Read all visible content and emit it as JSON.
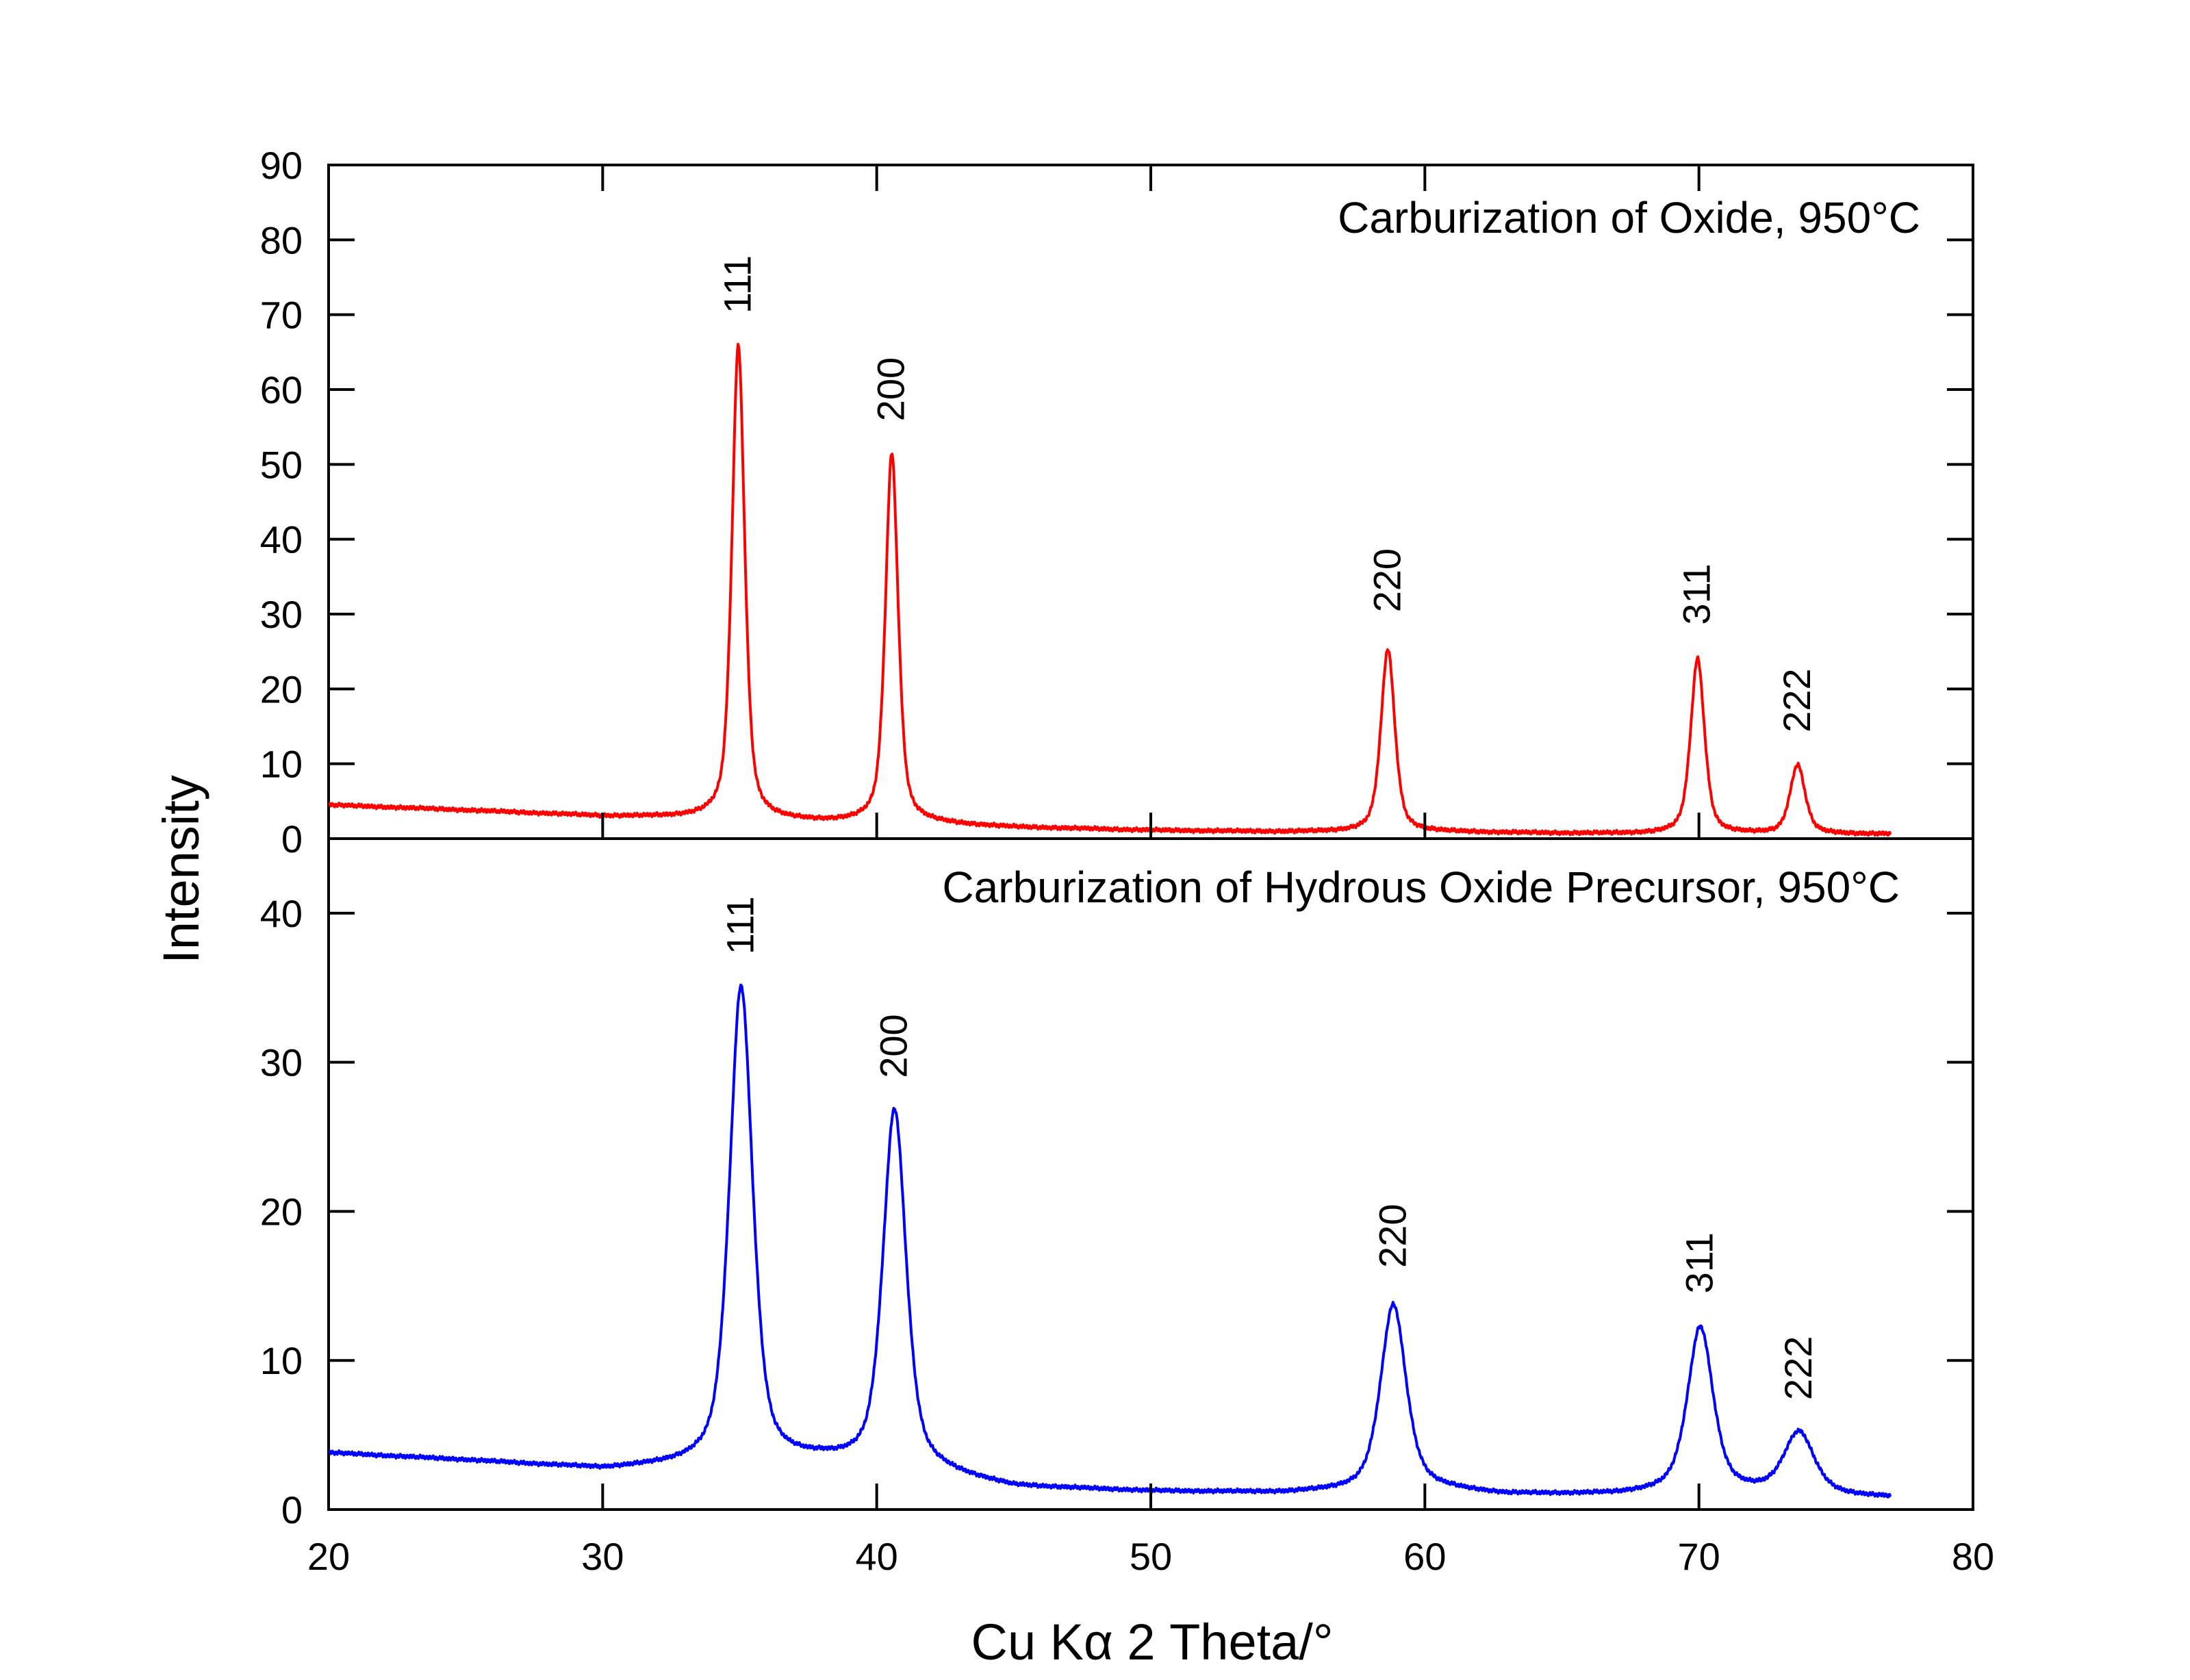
{
  "chart_data": {
    "type": "line",
    "xlabel": "Cu Kα 2 Theta/°",
    "ylabel": "Intensity",
    "xlim": [
      20,
      80
    ],
    "x_ticks": [
      20,
      30,
      40,
      50,
      60,
      70,
      80
    ],
    "colors": {
      "top": "#ff0000",
      "bottom": "#0000ff",
      "axes": "#000000"
    },
    "panels": [
      {
        "id": "top",
        "title": "Carburization of Oxide, 950°C",
        "ylim": [
          0,
          90
        ],
        "y_ticks": [
          0,
          10,
          20,
          30,
          40,
          50,
          60,
          70,
          80,
          90
        ],
        "series": {
          "name": "Carburization of Oxide, 950°C",
          "x_range": [
            20,
            77
          ],
          "background": [
            [
              20,
              4.5
            ],
            [
              25,
              3.8
            ],
            [
              30,
              3.0
            ],
            [
              33,
              2.8
            ],
            [
              38,
              2.2
            ],
            [
              42,
              2.0
            ],
            [
              45,
              1.5
            ],
            [
              50,
              1.1
            ],
            [
              55,
              0.9
            ],
            [
              60,
              0.9
            ],
            [
              65,
              0.7
            ],
            [
              70,
              0.6
            ],
            [
              77,
              0.6
            ]
          ],
          "peaks": [
            {
              "label": "111",
              "x": 34.95,
              "height": 63.2,
              "fwhm": 0.55
            },
            {
              "label": "200",
              "x": 40.55,
              "height": 49.3,
              "fwhm": 0.55
            },
            {
              "label": "220",
              "x": 58.65,
              "height": 24.4,
              "fwhm": 0.6
            },
            {
              "label": "311",
              "x": 69.95,
              "height": 23.4,
              "fwhm": 0.6
            },
            {
              "label": "222",
              "x": 73.6,
              "height": 9.2,
              "fwhm": 0.65
            }
          ]
        }
      },
      {
        "id": "bottom",
        "title": "Carburization of Hydrous Oxide Precursor, 950°C",
        "ylim": [
          0,
          45
        ],
        "y_ticks": [
          0,
          10,
          20,
          30,
          40
        ],
        "series": {
          "name": "Carburization of Hydrous Oxide Precursor, 950°C",
          "x_range": [
            20,
            77
          ],
          "background": [
            [
              20,
              3.8
            ],
            [
              25,
              3.3
            ],
            [
              30,
              2.7
            ],
            [
              33,
              2.9
            ],
            [
              38,
              3.2
            ],
            [
              42,
              2.5
            ],
            [
              45,
              1.5
            ],
            [
              50,
              1.2
            ],
            [
              55,
              1.1
            ],
            [
              60,
              1.4
            ],
            [
              63,
              1.0
            ],
            [
              67,
              1.0
            ],
            [
              70,
              1.3
            ],
            [
              77,
              0.8
            ]
          ],
          "peaks": [
            {
              "label": "111",
              "x": 35.05,
              "height": 32.0,
              "fwhm": 1.0
            },
            {
              "label": "200",
              "x": 40.65,
              "height": 24.0,
              "fwhm": 1.0
            },
            {
              "label": "220",
              "x": 58.85,
              "height": 12.4,
              "fwhm": 1.1
            },
            {
              "label": "311",
              "x": 70.05,
              "height": 10.9,
              "fwhm": 1.1
            },
            {
              "label": "222",
              "x": 73.65,
              "height": 4.1,
              "fwhm": 1.3
            }
          ]
        }
      }
    ]
  }
}
